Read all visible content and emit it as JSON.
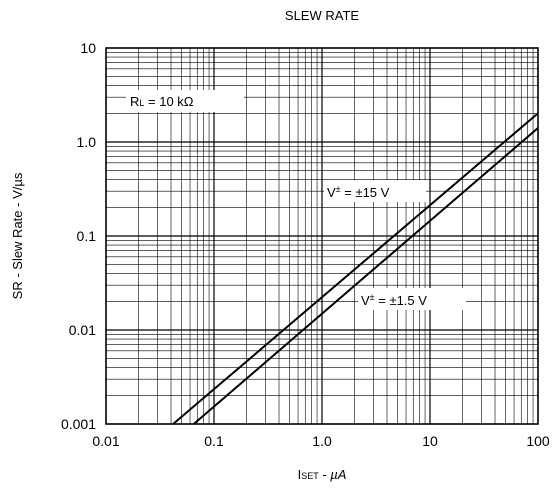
{
  "chart_data": {
    "type": "line",
    "title": "SLEW RATE",
    "xlabel": {
      "main": "I",
      "sub": "SET",
      "rest": " - ",
      "unit": "µA"
    },
    "ylabel": "SR - Slew Rate - V/µs",
    "xscale": "log",
    "yscale": "log",
    "xlim": [
      0.01,
      100
    ],
    "ylim": [
      0.001,
      10
    ],
    "x_ticks": [
      "0.01",
      "0.1",
      "1.0",
      "10",
      "100"
    ],
    "y_ticks": [
      "0.001",
      "0.01",
      "0.1",
      "1.0",
      "10"
    ],
    "grid": true,
    "annotations": {
      "rl": {
        "main": "R",
        "sub": "L",
        "rest": " = 10 kΩ"
      },
      "v15": {
        "main": "V",
        "sup": "±",
        "rest": " = ±15 V"
      },
      "v1_5": {
        "main": "V",
        "sup": "±",
        "rest": " = ±1.5 V"
      }
    },
    "series": [
      {
        "x": [
          0.0418,
          100
        ],
        "y": [
          0.001,
          2.02
        ]
      },
      {
        "x": [
          0.0649,
          100
        ],
        "y": [
          0.001,
          1.41
        ]
      }
    ]
  }
}
